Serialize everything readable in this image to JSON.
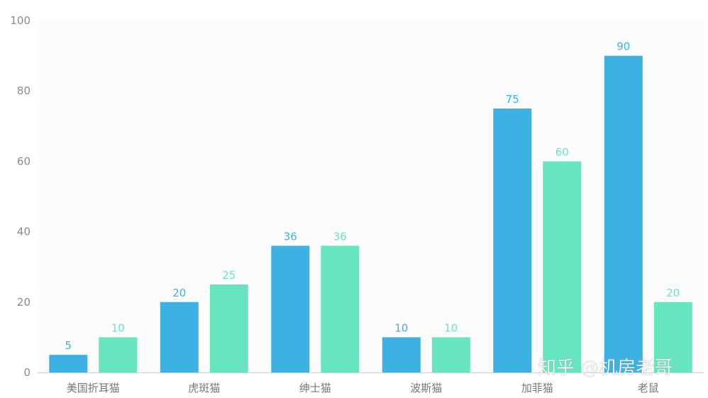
{
  "chart_data": {
    "type": "bar",
    "categories": [
      "美国折耳猫",
      "虎斑猫",
      "绅士猫",
      "波斯猫",
      "加菲猫",
      "老鼠"
    ],
    "series": [
      {
        "values": [
          5,
          20,
          36,
          10,
          75,
          90
        ],
        "color": "#3eb1e3"
      },
      {
        "values": [
          10,
          25,
          36,
          10,
          60,
          20
        ],
        "color": "#67e5bf"
      }
    ],
    "ylim": [
      0,
      100
    ],
    "yticks": [
      0,
      20,
      40,
      60,
      80,
      100
    ],
    "data_labels": true,
    "grid": false,
    "legend": "none"
  },
  "watermark": "知乎 @机房老哥",
  "colors": {
    "axis": "#cfd3d9",
    "tick_text": "#8a8a8a",
    "category_text": "#777777",
    "plot_background": "#fcfcfd"
  }
}
